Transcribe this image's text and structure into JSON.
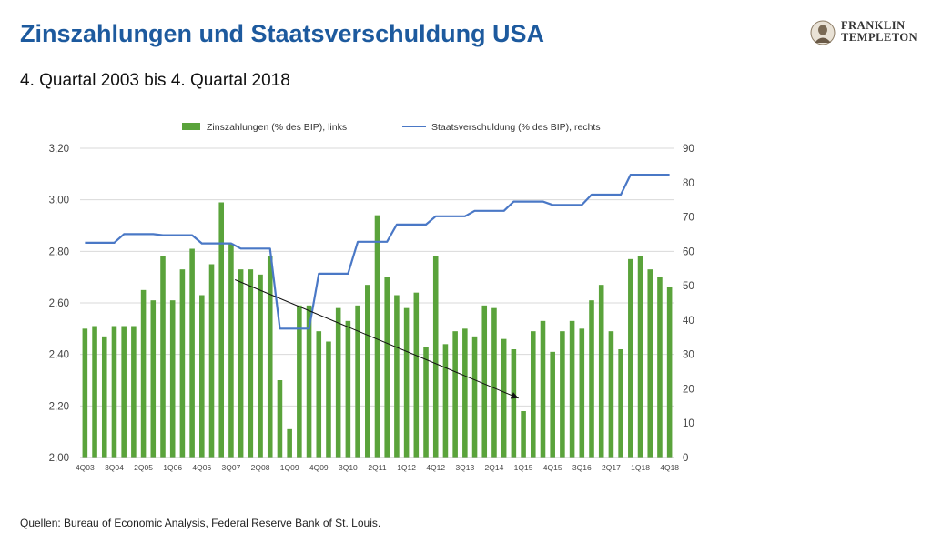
{
  "header": {
    "title": "Zinszahlungen und Staatsverschuldung USA",
    "subtitle": "4. Quartal 2003 bis 4. Quartal 2018"
  },
  "logo": {
    "line1": "FRANKLIN",
    "line2": "TEMPLETON",
    "icon": "portrait-medallion-icon"
  },
  "footer": {
    "source": "Quellen: Bureau of Economic Analysis, Federal Reserve Bank of St. Louis."
  },
  "colors": {
    "title": "#1d5a9e",
    "bars": "#5aa33b",
    "line": "#4a78c6",
    "grid": "#d9d9d9",
    "arrow": "#111111"
  },
  "chart_data": {
    "type": "bar",
    "legend_position": "top",
    "grid": true,
    "categories": [
      "4Q03",
      "1Q04",
      "2Q04",
      "3Q04",
      "4Q04",
      "1Q05",
      "2Q05",
      "3Q05",
      "4Q05",
      "1Q06",
      "2Q06",
      "3Q06",
      "4Q06",
      "1Q07",
      "2Q07",
      "3Q07",
      "4Q07",
      "1Q08",
      "2Q08",
      "3Q08",
      "4Q08",
      "1Q09",
      "2Q09",
      "3Q09",
      "4Q09",
      "1Q10",
      "2Q10",
      "3Q10",
      "4Q10",
      "1Q11",
      "2Q11",
      "3Q11",
      "4Q11",
      "1Q12",
      "2Q12",
      "3Q12",
      "4Q12",
      "1Q13",
      "2Q13",
      "3Q13",
      "4Q13",
      "1Q14",
      "2Q14",
      "3Q14",
      "4Q14",
      "1Q15",
      "2Q15",
      "3Q15",
      "4Q15",
      "1Q16",
      "2Q16",
      "3Q16",
      "4Q16",
      "1Q17",
      "2Q17",
      "3Q17",
      "4Q17",
      "1Q18",
      "2Q18",
      "3Q18",
      "4Q18"
    ],
    "x_tick_labels": [
      "4Q03",
      "",
      "",
      "3Q04",
      "",
      "",
      "2Q05",
      "",
      "",
      "1Q06",
      "",
      "",
      "4Q06",
      "",
      "",
      "3Q07",
      "",
      "",
      "2Q08",
      "",
      "",
      "1Q09",
      "",
      "",
      "4Q09",
      "",
      "",
      "3Q10",
      "",
      "",
      "2Q11",
      "",
      "",
      "1Q12",
      "",
      "",
      "4Q12",
      "",
      "",
      "3Q13",
      "",
      "",
      "2Q14",
      "",
      "",
      "1Q15",
      "",
      "",
      "4Q15",
      "",
      "",
      "3Q16",
      "",
      "",
      "2Q17",
      "",
      "",
      "1Q18",
      "",
      "",
      "4Q18"
    ],
    "series": [
      {
        "name": "Zinszahlungen (% des BIP), links",
        "kind": "bar",
        "axis": "left",
        "values": [
          2.5,
          2.51,
          2.47,
          2.51,
          2.51,
          2.51,
          2.65,
          2.61,
          2.78,
          2.61,
          2.73,
          2.81,
          2.63,
          2.75,
          2.99,
          2.83,
          2.73,
          2.73,
          2.71,
          2.78,
          2.3,
          2.11,
          2.59,
          2.59,
          2.49,
          2.45,
          2.58,
          2.53,
          2.59,
          2.67,
          2.94,
          2.7,
          2.63,
          2.58,
          2.64,
          2.43,
          2.78,
          2.44,
          2.49,
          2.5,
          2.47,
          2.59,
          2.58,
          2.46,
          2.42,
          2.18,
          2.49,
          2.53,
          2.41,
          2.49,
          2.53,
          2.5,
          2.61,
          2.67,
          2.49,
          2.42,
          2.77,
          2.78,
          2.73,
          2.7,
          2.66
        ]
      },
      {
        "name": "Staatsverschuldung (% des BIP), rechts",
        "kind": "line",
        "axis": "right",
        "values": [
          62.5,
          62.5,
          62.5,
          62.5,
          65,
          65,
          65,
          65,
          64.7,
          64.7,
          64.7,
          64.7,
          62.3,
          62.3,
          62.3,
          62.3,
          60.8,
          60.8,
          60.8,
          60.8,
          37.5,
          37.5,
          37.5,
          37.5,
          53.5,
          53.5,
          53.5,
          53.5,
          62.8,
          62.8,
          62.8,
          62.8,
          67.8,
          67.8,
          67.8,
          67.8,
          70.2,
          70.2,
          70.2,
          70.2,
          71.8,
          71.8,
          71.8,
          71.8,
          74.5,
          74.5,
          74.5,
          74.5,
          73.5,
          73.5,
          73.5,
          73.5,
          76.5,
          76.5,
          76.5,
          76.5,
          82.3,
          82.3,
          82.3,
          82.3,
          82.3
        ]
      }
    ],
    "y_left": {
      "ylim": [
        2.0,
        3.2
      ],
      "ticks": [
        "2,00",
        "2,20",
        "2,40",
        "2,60",
        "2,80",
        "3,00",
        "3,20"
      ]
    },
    "y_right": {
      "ylim": [
        0,
        90
      ],
      "ticks": [
        "0",
        "10",
        "20",
        "30",
        "40",
        "50",
        "60",
        "70",
        "80",
        "90"
      ]
    },
    "annotation": {
      "type": "arrow",
      "from": {
        "x": "3Q07",
        "y": 2.69
      },
      "to": {
        "x": "4Q14",
        "y": 2.23
      }
    }
  }
}
